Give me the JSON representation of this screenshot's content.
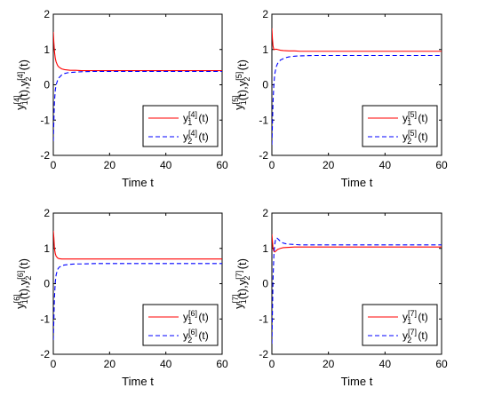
{
  "chart_data": [
    {
      "type": "line",
      "xlabel": "Time t",
      "ylabel": "y1[4](t),y2[4](t)",
      "ylabel_parts": [
        "y",
        "1",
        "[4]",
        "(t),y",
        "2",
        "[4]",
        "(t)"
      ],
      "xlim": [
        0,
        60
      ],
      "ylim": [
        -2,
        2
      ],
      "xticks": [
        "0",
        "20",
        "40",
        "60"
      ],
      "yticks": [
        "-2",
        "-1",
        "0",
        "1",
        "2"
      ],
      "legend_position": "bottom-right",
      "grid": false,
      "series": [
        {
          "name": "y1[4](t)",
          "legend": {
            "base": "y",
            "sub": "1",
            "sup": "[4]",
            "suffix": "(t)"
          },
          "color": "#ff0000",
          "style": "solid",
          "x": [
            0,
            0.2,
            0.4,
            0.7,
            1,
            1.5,
            2,
            3,
            4,
            5,
            6,
            8,
            10,
            15,
            20,
            30,
            40,
            50,
            60
          ],
          "y": [
            1.5,
            1.2,
            0.95,
            0.75,
            0.65,
            0.55,
            0.5,
            0.45,
            0.43,
            0.42,
            0.41,
            0.41,
            0.4,
            0.4,
            0.4,
            0.4,
            0.4,
            0.4,
            0.4
          ]
        },
        {
          "name": "y2[4](t)",
          "legend": {
            "base": "y",
            "sub": "2",
            "sup": "[4]",
            "suffix": "(t)"
          },
          "color": "#0000ff",
          "style": "dashed",
          "x": [
            0,
            0.2,
            0.4,
            0.7,
            1,
            1.5,
            2,
            3,
            4,
            5,
            6,
            8,
            10,
            15,
            20,
            30,
            40,
            50,
            60
          ],
          "y": [
            -1.6,
            -1.0,
            -0.5,
            -0.15,
            0.0,
            0.12,
            0.2,
            0.28,
            0.32,
            0.34,
            0.35,
            0.36,
            0.37,
            0.38,
            0.38,
            0.38,
            0.38,
            0.38,
            0.38
          ]
        }
      ]
    },
    {
      "type": "line",
      "xlabel": "Time t",
      "ylabel": "y1[5](t),y2[5](t)",
      "ylabel_parts": [
        "y",
        "1",
        "[5]",
        "(t),y",
        "2",
        "[5]",
        "(t)"
      ],
      "xlim": [
        0,
        60
      ],
      "ylim": [
        -2,
        2
      ],
      "xticks": [
        "0",
        "20",
        "40",
        "60"
      ],
      "yticks": [
        "-2",
        "-1",
        "0",
        "1",
        "2"
      ],
      "legend_position": "bottom-right",
      "grid": false,
      "series": [
        {
          "name": "y1[5](t)",
          "legend": {
            "base": "y",
            "sub": "1",
            "sup": "[5]",
            "suffix": "(t)"
          },
          "color": "#ff0000",
          "style": "solid",
          "x": [
            0,
            0.2,
            0.4,
            0.7,
            1,
            1.5,
            2,
            3,
            4,
            6,
            8,
            10,
            15,
            20,
            30,
            40,
            50,
            60
          ],
          "y": [
            1.6,
            1.3,
            1.1,
            1.0,
            1.0,
            1.01,
            1.0,
            0.98,
            0.97,
            0.96,
            0.96,
            0.95,
            0.95,
            0.95,
            0.95,
            0.95,
            0.95,
            0.95
          ]
        },
        {
          "name": "y2[5](t)",
          "legend": {
            "base": "y",
            "sub": "2",
            "sup": "[5]",
            "suffix": "(t)"
          },
          "color": "#0000ff",
          "style": "dashed",
          "x": [
            0,
            0.2,
            0.4,
            0.7,
            1,
            1.5,
            2,
            3,
            4,
            5,
            6,
            8,
            10,
            15,
            20,
            30,
            40,
            50,
            60
          ],
          "y": [
            -1.7,
            -1.1,
            -0.5,
            0.0,
            0.3,
            0.5,
            0.6,
            0.7,
            0.74,
            0.77,
            0.79,
            0.81,
            0.82,
            0.83,
            0.83,
            0.83,
            0.83,
            0.83,
            0.83
          ]
        }
      ]
    },
    {
      "type": "line",
      "xlabel": "Time t",
      "ylabel": "y1[6](t),y2[6](t)",
      "ylabel_parts": [
        "y",
        "1",
        "[6]",
        "(t),y",
        "2",
        "[6]",
        "(t)"
      ],
      "xlim": [
        0,
        60
      ],
      "ylim": [
        -2,
        2
      ],
      "xticks": [
        "0",
        "20",
        "40",
        "60"
      ],
      "yticks": [
        "-2",
        "-1",
        "0",
        "1",
        "2"
      ],
      "legend_position": "bottom-right",
      "grid": false,
      "series": [
        {
          "name": "y1[6](t)",
          "legend": {
            "base": "y",
            "sub": "1",
            "sup": "[6]",
            "suffix": "(t)"
          },
          "color": "#ff0000",
          "style": "solid",
          "x": [
            0,
            0.2,
            0.4,
            0.7,
            1,
            1.5,
            2,
            3,
            4,
            6,
            8,
            10,
            15,
            20,
            30,
            40,
            50,
            60
          ],
          "y": [
            1.5,
            1.3,
            1.0,
            0.85,
            0.78,
            0.73,
            0.71,
            0.7,
            0.7,
            0.7,
            0.7,
            0.7,
            0.7,
            0.7,
            0.7,
            0.7,
            0.7,
            0.7
          ]
        },
        {
          "name": "y2[6](t)",
          "legend": {
            "base": "y",
            "sub": "2",
            "sup": "[6]",
            "suffix": "(t)"
          },
          "color": "#0000ff",
          "style": "dashed",
          "x": [
            0,
            0.2,
            0.4,
            0.7,
            1,
            1.5,
            2,
            3,
            4,
            5,
            6,
            8,
            10,
            15,
            20,
            30,
            40,
            50,
            60
          ],
          "y": [
            -1.6,
            -1.0,
            -0.4,
            0.05,
            0.25,
            0.4,
            0.46,
            0.51,
            0.53,
            0.54,
            0.55,
            0.56,
            0.56,
            0.57,
            0.57,
            0.57,
            0.57,
            0.57,
            0.57
          ]
        }
      ]
    },
    {
      "type": "line",
      "xlabel": "Time t",
      "ylabel": "y1[7](t),y2[7](t)",
      "ylabel_parts": [
        "y",
        "1",
        "[7]",
        "(t),y",
        "2",
        "[7]",
        "(t)"
      ],
      "xlim": [
        0,
        60
      ],
      "ylim": [
        -2,
        2
      ],
      "xticks": [
        "0",
        "20",
        "40",
        "60"
      ],
      "yticks": [
        "-2",
        "-1",
        "0",
        "1",
        "2"
      ],
      "legend_position": "bottom-right",
      "grid": false,
      "series": [
        {
          "name": "y1[7](t)",
          "legend": {
            "base": "y",
            "sub": "1",
            "sup": "[7]",
            "suffix": "(t)"
          },
          "color": "#ff0000",
          "style": "solid",
          "x": [
            0,
            0.2,
            0.4,
            0.7,
            1,
            1.5,
            2,
            3,
            4,
            6,
            8,
            10,
            15,
            20,
            30,
            40,
            50,
            60
          ],
          "y": [
            1.4,
            1.2,
            1.0,
            0.92,
            0.9,
            0.93,
            0.97,
            1.0,
            1.02,
            1.03,
            1.04,
            1.04,
            1.04,
            1.04,
            1.04,
            1.04,
            1.04,
            1.04
          ]
        },
        {
          "name": "y2[7](t)",
          "legend": {
            "base": "y",
            "sub": "2",
            "sup": "[7]",
            "suffix": "(t)"
          },
          "color": "#0000ff",
          "style": "dashed",
          "x": [
            0,
            0.2,
            0.4,
            0.7,
            1,
            1.3,
            1.7,
            2,
            3,
            4,
            5,
            6,
            8,
            10,
            15,
            20,
            30,
            40,
            50,
            60
          ],
          "y": [
            -1.7,
            -0.8,
            0.1,
            0.8,
            1.1,
            1.25,
            1.3,
            1.28,
            1.2,
            1.15,
            1.13,
            1.12,
            1.11,
            1.1,
            1.1,
            1.1,
            1.1,
            1.1,
            1.1,
            1.1
          ]
        }
      ]
    }
  ]
}
